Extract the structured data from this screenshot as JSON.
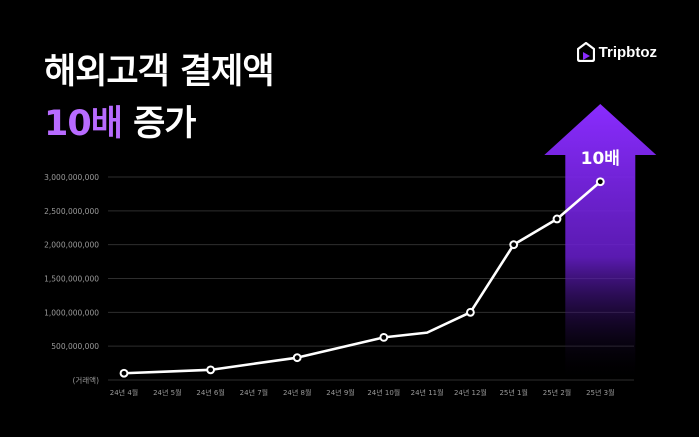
{
  "header": {
    "title_line1": "해외고객 결제액",
    "title_accent": "10배",
    "title_rest": " 증가"
  },
  "brand": {
    "name": "Tripbtoz",
    "icon": "tripbtoz-logo-icon"
  },
  "colors": {
    "background": "#000000",
    "accent": "#b86bff",
    "arrow_top": "#8a2cff",
    "line": "#ffffff",
    "grid": "#2e2e2e",
    "tick": "#9a9a9a"
  },
  "chart_data": {
    "type": "line",
    "unit_label": "(거래액)",
    "categories": [
      "24년 4월",
      "24년 5월",
      "24년 6월",
      "24년 7월",
      "24년 8월",
      "24년 9월",
      "24년 10월",
      "24년 11월",
      "24년 12월",
      "25년 1월",
      "25년 2월",
      "25년 3월"
    ],
    "values": [
      100000000,
      125000000,
      150000000,
      240000000,
      330000000,
      480000000,
      630000000,
      700000000,
      1000000000,
      2000000000,
      2380000000,
      2930000000
    ],
    "markers_at": [
      0,
      2,
      4,
      6,
      8,
      9,
      10,
      11
    ],
    "y_ticks": [
      0,
      500000000,
      1000000000,
      1500000000,
      2000000000,
      2500000000,
      3000000000
    ],
    "y_tick_labels": [
      "(거래액)",
      "500,000,000",
      "1,000,000,000",
      "1,500,000,000",
      "2,000,000,000",
      "2,500,000,000",
      "3,000,000,000"
    ],
    "ylim": [
      0,
      3000000000
    ],
    "grid": true,
    "annotation": "10배"
  }
}
